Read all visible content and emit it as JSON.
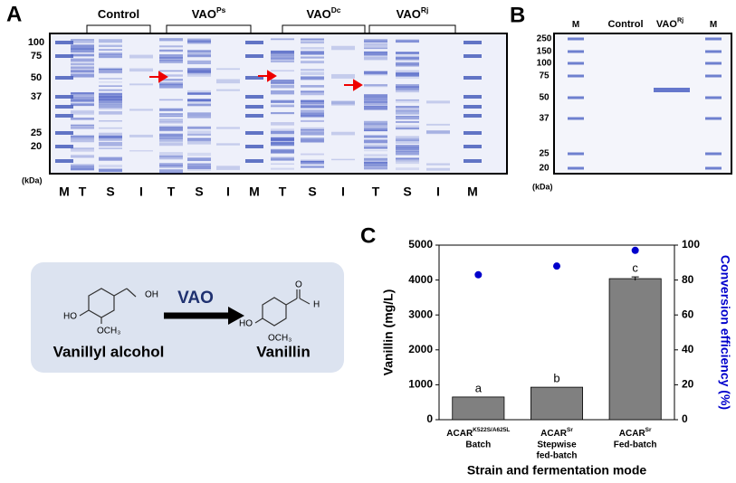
{
  "panel_a": {
    "label": "A",
    "groups": [
      {
        "name": "Control"
      },
      {
        "name": "VAO",
        "sup": "Ps"
      },
      {
        "name": "VAO",
        "sup": "Dc"
      },
      {
        "name": "VAO",
        "sup": "Rj"
      }
    ],
    "markers": [
      "100",
      "75",
      "50",
      "37",
      "25",
      "20"
    ],
    "unit": "(kDa)",
    "lanes": [
      "M",
      "T",
      "S",
      "I",
      "T",
      "S",
      "I",
      "M",
      "T",
      "S",
      "I",
      "T",
      "S",
      "I",
      "M"
    ]
  },
  "panel_b": {
    "label": "B",
    "lanes": [
      {
        "name": "M"
      },
      {
        "name": "Control"
      },
      {
        "name": "VAO",
        "sup": "Rj"
      },
      {
        "name": "M"
      }
    ],
    "markers": [
      "250",
      "150",
      "100",
      "75",
      "50",
      "37",
      "25",
      "20"
    ],
    "unit": "(kDa)"
  },
  "scheme": {
    "enzyme": "VAO",
    "substrate": "Vanillyl alcohol",
    "product": "Vanillin",
    "substrate_atoms": [
      "OH",
      "HO",
      "OCH₃"
    ],
    "product_atoms": [
      "O",
      "H",
      "HO",
      "OCH₃"
    ]
  },
  "chart_data": {
    "type": "bar",
    "label": "C",
    "ylabel": "Vanillin (mg/L)",
    "y2label": "Conversion efficiency (%)",
    "xlabel": "Strain and fermentation mode",
    "categories": [
      {
        "name": "ACAR",
        "sup": "K522S/A625L",
        "lines": [
          "Batch"
        ]
      },
      {
        "name": "ACAR",
        "sup": "Sr",
        "lines": [
          "Stepwise",
          "fed-batch"
        ]
      },
      {
        "name": "ACAR",
        "sup": "Sr",
        "lines": [
          "Fed-batch"
        ]
      }
    ],
    "series": [
      {
        "type": "bar",
        "color": "#808080",
        "values": [
          650,
          930,
          4040
        ],
        "errors": [
          null,
          null,
          50
        ],
        "annotations": [
          "a",
          "b",
          "c"
        ]
      },
      {
        "type": "scatter",
        "axis": "y2",
        "color": "#0000cc",
        "values": [
          83,
          88,
          97
        ]
      }
    ],
    "ylim": [
      0,
      5000
    ],
    "yticks": [
      0,
      1000,
      2000,
      3000,
      4000,
      5000
    ],
    "y2lim": [
      0,
      100
    ],
    "y2ticks": [
      0,
      20,
      40,
      60,
      80,
      100
    ]
  }
}
